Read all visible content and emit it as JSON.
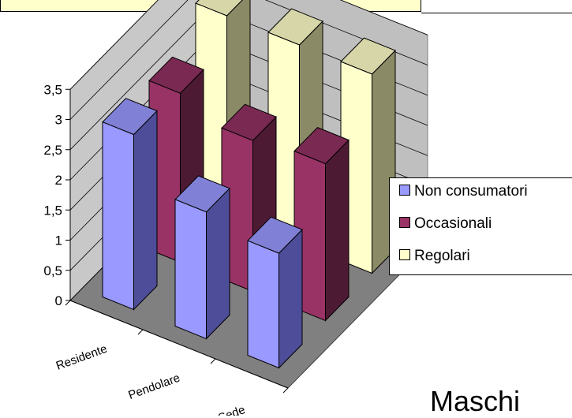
{
  "chart_data": {
    "type": "bar",
    "style": "3d-clustered",
    "categories": [
      "Residente",
      "Pendolare",
      "F Sede"
    ],
    "series": [
      {
        "name": "Non consumatori",
        "values": [
          2.9,
          2.1,
          1.9
        ],
        "color": "#9999ff",
        "side": "#4d4d99",
        "top": "#8080d6"
      },
      {
        "name": "Occasionali",
        "values": [
          2.8,
          2.5,
          2.6
        ],
        "color": "#993366",
        "side": "#4d1a33",
        "top": "#7a2952"
      },
      {
        "name": "Regolari",
        "values": [
          3.3,
          3.3,
          3.3
        ],
        "color": "#ffffcc",
        "side": "#8a8a66",
        "top": "#d6d6a8"
      }
    ],
    "y_ticks": [
      "3,5",
      "3",
      "2,5",
      "2",
      "1,5",
      "1",
      "0,5",
      "0"
    ],
    "ylim": [
      0,
      3.5
    ],
    "grid": true,
    "legend_position": "right"
  },
  "caption": "Maschi"
}
